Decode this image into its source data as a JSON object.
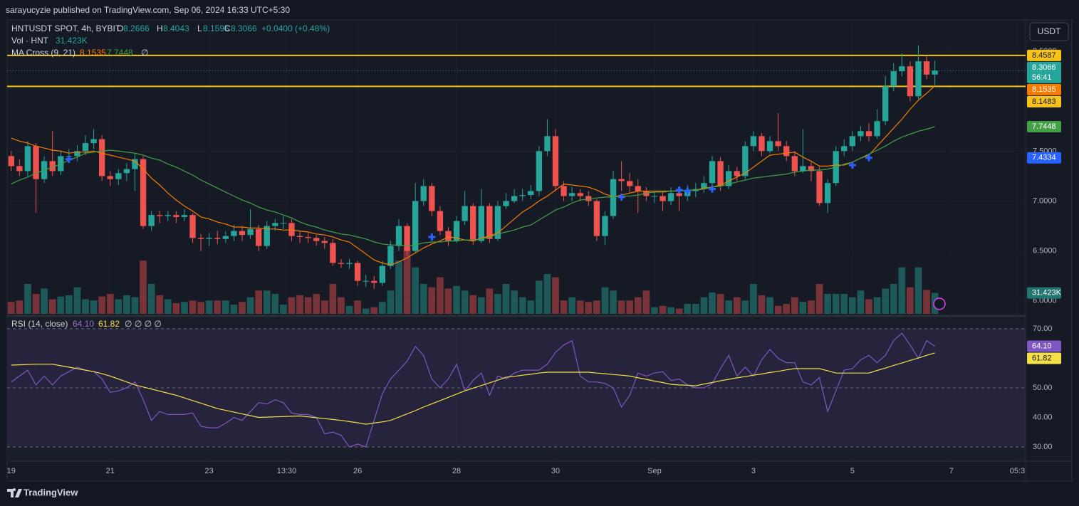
{
  "header": {
    "publisher": "sarayucyzie published on TradingView.com, Sep 06, 2024 16:33 UTC+5:30",
    "currency": "USDT",
    "countdown": "56:41",
    "brand": "TradingView"
  },
  "legend": {
    "symbol": "HNTUSDT SPOT, 4h, BYBIT",
    "o": "O",
    "h": "H",
    "l": "L",
    "c": "C",
    "change": "+0.0400 (+0.48%)",
    "vol": "Vol · HNT",
    "ma": "MA Cross (9, 21)",
    "null_sign": "∅",
    "rsi": "RSI (14, close)",
    "rsi_nulls": "∅ ∅ ∅ ∅"
  },
  "chart_data": [
    {
      "type": "candlestick",
      "up_color": "#26a69a",
      "down_color": "#ef5350",
      "open": [
        7.45,
        7.35,
        7.3,
        7.55,
        7.22,
        7.4,
        7.3,
        7.45,
        7.45,
        7.5,
        7.58,
        7.62,
        7.25,
        7.22,
        7.28,
        7.32,
        7.42,
        6.75,
        6.86,
        6.85,
        6.86,
        6.84,
        6.86,
        6.63,
        6.62,
        6.63,
        6.62,
        6.65,
        6.7,
        6.66,
        6.72,
        6.55,
        6.75,
        6.78,
        6.78,
        6.65,
        6.64,
        6.63,
        6.6,
        6.58,
        6.38,
        6.37,
        6.38,
        6.2,
        6.2,
        6.18,
        6.35,
        6.55,
        6.75,
        6.5,
        7.0,
        7.15,
        6.9,
        6.7,
        6.6,
        6.8,
        6.95,
        6.6,
        6.95,
        6.62,
        6.95,
        7.0,
        7.05,
        7.06,
        7.1,
        7.5,
        7.65,
        7.15,
        7.05,
        7.08,
        7.05,
        7.0,
        6.65,
        6.85,
        7.22,
        7.2,
        7.15,
        7.1,
        7.05,
        7.05,
        7.0,
        7.08,
        7.05,
        7.1,
        7.12,
        7.18,
        7.4,
        7.15,
        7.3,
        7.25,
        7.55,
        7.65,
        7.5,
        7.6,
        7.55,
        7.45,
        7.3,
        7.35,
        7.3,
        6.98,
        7.18,
        7.5,
        7.55,
        7.65,
        7.7,
        7.65,
        7.8,
        8.15,
        8.3,
        8.35,
        8.05,
        8.4,
        8.2666
      ],
      "high": [
        7.5,
        7.42,
        7.6,
        7.58,
        7.45,
        7.7,
        7.5,
        7.52,
        7.56,
        7.66,
        7.72,
        7.66,
        7.3,
        7.32,
        7.38,
        7.48,
        7.45,
        6.9,
        6.9,
        6.9,
        6.9,
        6.92,
        6.88,
        6.67,
        6.68,
        6.7,
        6.7,
        6.76,
        6.75,
        6.92,
        6.76,
        6.8,
        6.82,
        6.85,
        6.82,
        6.7,
        6.68,
        6.66,
        6.64,
        6.62,
        6.42,
        6.42,
        6.4,
        6.26,
        6.25,
        6.4,
        6.6,
        6.82,
        6.78,
        7.18,
        7.22,
        7.18,
        6.95,
        6.74,
        6.85,
        7.1,
        6.98,
        7.12,
        6.98,
        7.0,
        7.08,
        7.12,
        7.12,
        7.16,
        7.55,
        7.82,
        7.72,
        7.2,
        7.14,
        7.12,
        7.1,
        7.02,
        6.9,
        7.3,
        7.4,
        7.28,
        7.22,
        7.14,
        7.1,
        7.1,
        7.14,
        7.12,
        7.16,
        7.18,
        7.25,
        7.45,
        7.44,
        7.36,
        7.34,
        7.6,
        7.7,
        7.68,
        7.65,
        7.88,
        7.6,
        7.5,
        7.72,
        7.4,
        7.34,
        7.22,
        7.55,
        7.62,
        7.7,
        7.75,
        7.78,
        7.92,
        8.25,
        8.38,
        8.48,
        8.4,
        8.56,
        8.45,
        8.4043
      ],
      "low": [
        7.3,
        7.25,
        7.25,
        6.88,
        7.18,
        7.25,
        7.26,
        7.38,
        7.4,
        7.46,
        7.52,
        7.2,
        7.15,
        7.16,
        7.2,
        7.1,
        6.72,
        6.7,
        6.78,
        6.8,
        6.78,
        6.8,
        6.58,
        6.5,
        6.55,
        6.57,
        6.58,
        6.6,
        6.6,
        6.62,
        6.5,
        6.52,
        6.7,
        6.72,
        6.6,
        6.58,
        6.58,
        6.55,
        6.52,
        6.35,
        6.33,
        6.32,
        6.15,
        6.14,
        6.12,
        6.15,
        6.32,
        6.5,
        6.45,
        6.48,
        6.95,
        6.85,
        6.66,
        6.55,
        6.58,
        6.76,
        6.56,
        6.58,
        6.58,
        6.6,
        6.92,
        6.98,
        7.0,
        7.02,
        7.05,
        7.45,
        7.1,
        7.0,
        7.0,
        7.0,
        6.95,
        6.6,
        6.56,
        6.82,
        7.1,
        7.08,
        6.88,
        7.0,
        6.98,
        6.9,
        6.96,
        6.9,
        7.0,
        7.04,
        7.08,
        7.12,
        7.1,
        7.12,
        7.2,
        7.22,
        7.5,
        7.45,
        7.48,
        7.5,
        7.4,
        7.25,
        7.28,
        7.2,
        6.95,
        6.88,
        7.15,
        7.45,
        7.5,
        7.6,
        7.6,
        7.62,
        7.76,
        8.1,
        8.25,
        8.0,
        8.02,
        8.22,
        8.1595
      ],
      "close": [
        7.35,
        7.3,
        7.55,
        7.22,
        7.4,
        7.3,
        7.45,
        7.45,
        7.5,
        7.58,
        7.62,
        7.25,
        7.22,
        7.28,
        7.32,
        7.42,
        6.75,
        6.86,
        6.85,
        6.86,
        6.84,
        6.86,
        6.63,
        6.62,
        6.63,
        6.62,
        6.65,
        6.7,
        6.66,
        6.72,
        6.55,
        6.75,
        6.78,
        6.78,
        6.65,
        6.64,
        6.63,
        6.6,
        6.58,
        6.38,
        6.37,
        6.38,
        6.2,
        6.2,
        6.18,
        6.35,
        6.55,
        6.75,
        6.5,
        7.0,
        7.15,
        6.9,
        6.7,
        6.6,
        6.8,
        6.95,
        6.6,
        6.95,
        6.62,
        6.95,
        7.0,
        7.05,
        7.06,
        7.1,
        7.5,
        7.65,
        7.15,
        7.05,
        7.08,
        7.05,
        7.0,
        6.65,
        6.85,
        7.22,
        7.2,
        7.15,
        7.1,
        7.05,
        7.05,
        7.0,
        7.08,
        7.05,
        7.1,
        7.12,
        7.18,
        7.4,
        7.15,
        7.3,
        7.25,
        7.55,
        7.65,
        7.5,
        7.6,
        7.55,
        7.45,
        7.3,
        7.35,
        7.3,
        6.98,
        7.18,
        7.5,
        7.55,
        7.65,
        7.7,
        7.65,
        7.8,
        8.15,
        8.3,
        8.35,
        8.05,
        8.4,
        8.2666,
        8.3066
      ],
      "volume": [
        18000,
        20000,
        45000,
        30000,
        38000,
        22000,
        26000,
        28000,
        40000,
        22000,
        20000,
        26000,
        30000,
        22000,
        28000,
        25000,
        80000,
        45000,
        28000,
        22000,
        16000,
        18000,
        20000,
        18000,
        20000,
        20000,
        20000,
        14000,
        18000,
        25000,
        35000,
        35000,
        30000,
        14000,
        25000,
        28000,
        25000,
        30000,
        20000,
        45000,
        25000,
        12000,
        20000,
        8000,
        10000,
        18000,
        35000,
        80000,
        100000,
        70000,
        45000,
        40000,
        55000,
        38000,
        42000,
        35000,
        28000,
        25000,
        38000,
        30000,
        45000,
        35000,
        25000,
        20000,
        50000,
        60000,
        55000,
        20000,
        25000,
        20000,
        18000,
        20000,
        40000,
        35000,
        20000,
        20000,
        25000,
        35000,
        10000,
        12000,
        10000,
        8000,
        15000,
        15000,
        25000,
        32000,
        30000,
        20000,
        25000,
        20000,
        45000,
        28000,
        25000,
        12000,
        15000,
        25000,
        18000,
        20000,
        45000,
        30000,
        30000,
        30000,
        25000,
        35000,
        22000,
        25000,
        38000,
        45000,
        70000,
        40000,
        70000,
        36000,
        31423
      ],
      "volume_last_label": "31.423K",
      "volume_ylim": [
        0,
        440000
      ],
      "ma_fast": {
        "color": "#f57c00",
        "values": [
          7.63,
          7.6,
          7.58,
          7.55,
          7.53,
          7.51,
          7.5,
          7.48,
          7.49,
          7.49,
          7.5,
          7.48,
          7.46,
          7.44,
          7.42,
          7.4,
          7.32,
          7.23,
          7.16,
          7.08,
          7.01,
          6.95,
          6.9,
          6.84,
          6.82,
          6.79,
          6.77,
          6.74,
          6.74,
          6.73,
          6.73,
          6.72,
          6.72,
          6.71,
          6.71,
          6.7,
          6.69,
          6.67,
          6.66,
          6.64,
          6.61,
          6.59,
          6.53,
          6.47,
          6.41,
          6.38,
          6.36,
          6.39,
          6.43,
          6.48,
          6.53,
          6.57,
          6.6,
          6.64,
          6.63,
          6.61,
          6.6,
          6.63,
          6.65,
          6.68,
          6.75,
          6.82,
          6.89,
          6.94,
          7.0,
          7.05,
          7.11,
          7.17,
          7.16,
          7.15,
          7.14,
          7.11,
          7.07,
          7.04,
          7.06,
          7.08,
          7.1,
          7.1,
          7.1,
          7.1,
          7.1,
          7.1,
          7.11,
          7.11,
          7.13,
          7.14,
          7.16,
          7.2,
          7.24,
          7.28,
          7.34,
          7.4,
          7.46,
          7.47,
          7.48,
          7.49,
          7.44,
          7.4,
          7.35,
          7.35,
          7.36,
          7.36,
          7.39,
          7.43,
          7.46,
          7.55,
          7.64,
          7.73,
          7.82,
          7.92,
          8.01,
          8.08,
          8.1535
        ]
      },
      "ma_slow": {
        "color": "#43a047",
        "values": [
          7.17,
          7.21,
          7.24,
          7.28,
          7.31,
          7.34,
          7.37,
          7.41,
          7.44,
          7.48,
          7.49,
          7.5,
          7.51,
          7.5,
          7.49,
          7.48,
          7.46,
          7.43,
          7.41,
          7.37,
          7.34,
          7.3,
          7.26,
          7.21,
          7.17,
          7.13,
          7.09,
          7.05,
          7.01,
          6.98,
          6.94,
          6.91,
          6.89,
          6.86,
          6.83,
          6.79,
          6.76,
          6.74,
          6.71,
          6.69,
          6.67,
          6.66,
          6.64,
          6.62,
          6.59,
          6.57,
          6.56,
          6.56,
          6.55,
          6.56,
          6.58,
          6.59,
          6.59,
          6.6,
          6.6,
          6.61,
          6.61,
          6.62,
          6.64,
          6.67,
          6.69,
          6.71,
          6.74,
          6.76,
          6.81,
          6.86,
          6.91,
          6.94,
          6.98,
          7.01,
          7.02,
          7.03,
          7.04,
          7.04,
          7.05,
          7.05,
          7.06,
          7.08,
          7.09,
          7.09,
          7.1,
          7.1,
          7.11,
          7.11,
          7.12,
          7.14,
          7.15,
          7.17,
          7.19,
          7.21,
          7.23,
          7.24,
          7.25,
          7.26,
          7.27,
          7.29,
          7.3,
          7.31,
          7.31,
          7.32,
          7.34,
          7.37,
          7.39,
          7.43,
          7.47,
          7.51,
          7.55,
          7.6,
          7.64,
          7.67,
          7.7,
          7.72,
          7.7448
        ]
      },
      "cross_markers": {
        "color": "#2962ff",
        "x": [
          7,
          51,
          74,
          81,
          82,
          85,
          102,
          104
        ],
        "values": [
          7.42,
          6.64,
          7.04,
          7.11,
          7.1,
          7.12,
          7.36,
          7.4334
        ]
      },
      "levels": [
        8.4587,
        8.1483
      ],
      "level_color": "#f7c21a",
      "xlim": [
        -0.5,
        123
      ],
      "xticks": [
        {
          "value": 0,
          "label": "19"
        },
        {
          "value": 12,
          "label": "21"
        },
        {
          "value": 24,
          "label": "23"
        },
        {
          "value": 33.4,
          "label": "13:30"
        },
        {
          "value": 42,
          "label": "26"
        },
        {
          "value": 54,
          "label": "28"
        },
        {
          "value": 66,
          "label": "30"
        },
        {
          "value": 78,
          "label": "Sep"
        },
        {
          "value": 90,
          "label": "3"
        },
        {
          "value": 102,
          "label": "5"
        },
        {
          "value": 114,
          "label": "7"
        },
        {
          "value": 122,
          "label": "05:3"
        }
      ],
      "ylim": [
        5.87,
        8.8
      ],
      "yticks": [
        {
          "value": 6,
          "label": "6.0000"
        },
        {
          "value": 6.5,
          "label": "6.5000"
        },
        {
          "value": 7,
          "label": "7.0000"
        },
        {
          "value": 7.5,
          "label": "7.5000"
        },
        {
          "value": 8.5,
          "label": "8.5000"
        }
      ]
    },
    {
      "type": "line",
      "series": [
        {
          "color": "#7e57c2",
          "last_label": "64.10",
          "values": [
            52,
            54,
            56,
            51,
            54,
            51,
            54,
            55.5,
            57,
            56,
            55.5,
            53,
            48.5,
            49,
            50,
            52,
            46,
            39,
            42,
            41,
            41,
            41,
            41.5,
            37,
            36.5,
            36.5,
            38,
            40,
            39,
            42,
            45,
            44.5,
            46,
            45,
            41.5,
            41,
            41,
            40,
            34.5,
            35,
            34,
            30,
            31,
            30,
            39,
            48,
            53,
            56,
            59,
            64,
            61,
            53,
            50,
            53,
            58,
            49,
            52.5,
            55,
            47.5,
            54,
            53,
            55,
            56,
            56,
            56,
            58,
            62,
            64.5,
            66,
            54,
            52,
            52,
            51.5,
            50,
            43.5,
            47.5,
            55,
            54,
            55,
            55.5,
            52.5,
            53,
            51,
            50,
            50,
            51.5,
            56.5,
            61,
            54,
            57,
            54,
            59.5,
            63,
            60,
            58.5,
            58.5,
            52,
            51,
            53.5,
            42,
            49,
            56,
            56.5,
            59.5,
            61,
            58.5,
            61,
            66,
            68.5,
            64.5,
            60,
            66,
            64.1
          ]
        },
        {
          "color": "#f5e146",
          "values": [
            57.7,
            57.8,
            57.9,
            58,
            58,
            58,
            57.5,
            57,
            56.5,
            56,
            55.5,
            54.8,
            54,
            53,
            52,
            51,
            50.3,
            49.6,
            48.9,
            48.2,
            47.5,
            46.6,
            45.7,
            44.8,
            43.9,
            43,
            42.4,
            41.8,
            41.2,
            40.6,
            40,
            40.1,
            40.2,
            40.3,
            40.4,
            40.5,
            40.2,
            39.9,
            39.6,
            39.3,
            39,
            38.6,
            38.2,
            37.7,
            38.1,
            38.5,
            39,
            40.1,
            41.2,
            42.3,
            43.5,
            44.6,
            45.7,
            46.8,
            47.9,
            49,
            49.9,
            50.8,
            51.7,
            52.6,
            53.6,
            53.9,
            54.3,
            54.6,
            55,
            55.3,
            55.3,
            55.3,
            55.3,
            55.3,
            55.3,
            55,
            54.8,
            54.5,
            54.3,
            54,
            53.4,
            52.9,
            52.3,
            51.8,
            51.2,
            51,
            50.9,
            50.7,
            51.3,
            51.8,
            52.4,
            52.9,
            53.4,
            53.8,
            54.3,
            54.7,
            55.2,
            55.6,
            56.1,
            56.5,
            56.5,
            56.5,
            56.5,
            55.8,
            55,
            55,
            55,
            55,
            55,
            55.9,
            56.7,
            57.6,
            58.4,
            59.3,
            60.1,
            61,
            61.82
          ]
        }
      ],
      "hlines": [
        70,
        50,
        30
      ],
      "ylim": [
        25.2,
        73.6
      ],
      "yticks": [
        {
          "value": 30,
          "label": "30.00"
        },
        {
          "value": 40,
          "label": "40.00"
        },
        {
          "value": 50,
          "label": "50.00"
        },
        {
          "value": 70,
          "label": "70.00"
        }
      ]
    }
  ]
}
